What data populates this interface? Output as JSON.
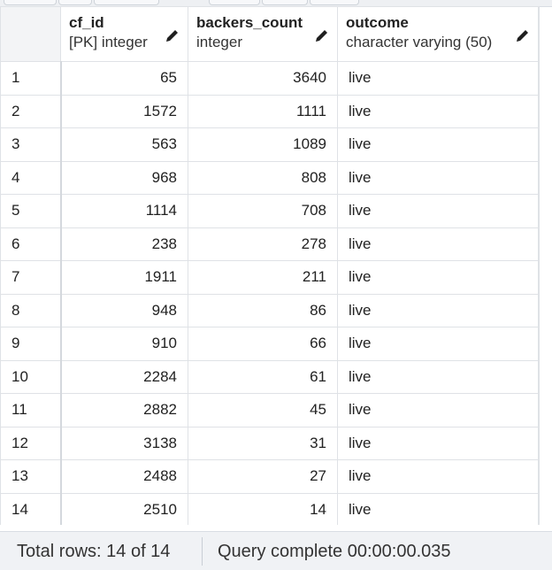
{
  "columns": [
    {
      "name": "",
      "type": ""
    },
    {
      "name": "cf_id",
      "type": "[PK] integer"
    },
    {
      "name": "backers_count",
      "type": "integer"
    },
    {
      "name": "outcome",
      "type": "character varying (50)"
    }
  ],
  "rows": [
    {
      "n": "1",
      "cf_id": "65",
      "backers_count": "3640",
      "outcome": "live"
    },
    {
      "n": "2",
      "cf_id": "1572",
      "backers_count": "1111",
      "outcome": "live"
    },
    {
      "n": "3",
      "cf_id": "563",
      "backers_count": "1089",
      "outcome": "live"
    },
    {
      "n": "4",
      "cf_id": "968",
      "backers_count": "808",
      "outcome": "live"
    },
    {
      "n": "5",
      "cf_id": "1114",
      "backers_count": "708",
      "outcome": "live"
    },
    {
      "n": "6",
      "cf_id": "238",
      "backers_count": "278",
      "outcome": "live"
    },
    {
      "n": "7",
      "cf_id": "1911",
      "backers_count": "211",
      "outcome": "live"
    },
    {
      "n": "8",
      "cf_id": "948",
      "backers_count": "86",
      "outcome": "live"
    },
    {
      "n": "9",
      "cf_id": "910",
      "backers_count": "66",
      "outcome": "live"
    },
    {
      "n": "10",
      "cf_id": "2284",
      "backers_count": "61",
      "outcome": "live"
    },
    {
      "n": "11",
      "cf_id": "2882",
      "backers_count": "45",
      "outcome": "live"
    },
    {
      "n": "12",
      "cf_id": "3138",
      "backers_count": "31",
      "outcome": "live"
    },
    {
      "n": "13",
      "cf_id": "2488",
      "backers_count": "27",
      "outcome": "live"
    },
    {
      "n": "14",
      "cf_id": "2510",
      "backers_count": "14",
      "outcome": "live"
    }
  ],
  "status": {
    "total_rows": "Total rows: 14 of 14",
    "query": "Query complete 00:00:00.035"
  },
  "icons": {
    "edit": "pencil-icon"
  },
  "colors": {
    "grid_line": "#dfe2e6",
    "status_bg": "#f0f2f5"
  }
}
